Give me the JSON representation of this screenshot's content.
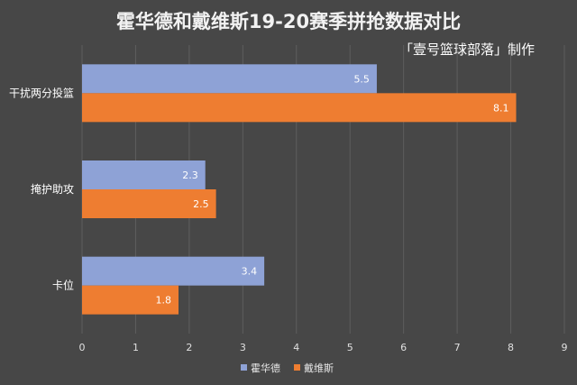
{
  "chart_data": {
    "type": "bar",
    "orientation": "horizontal",
    "title": "霍华德和戴维斯19-20赛季拼抢数据对比",
    "subtitle": "「壹号篮球部落」制作",
    "categories": [
      "干扰两分投篮",
      "掩护助攻",
      "卡位"
    ],
    "series": [
      {
        "name": "霍华德",
        "color": "#8ea2d6",
        "values": [
          5.5,
          2.3,
          3.4
        ]
      },
      {
        "name": "戴维斯",
        "color": "#ee7d31",
        "values": [
          8.1,
          2.5,
          1.8
        ]
      }
    ],
    "xlim": [
      0,
      9
    ],
    "xticks": [
      "0",
      "1",
      "2",
      "3",
      "4",
      "5",
      "6",
      "7",
      "8",
      "9"
    ],
    "grid": true,
    "legend": "bottom"
  }
}
